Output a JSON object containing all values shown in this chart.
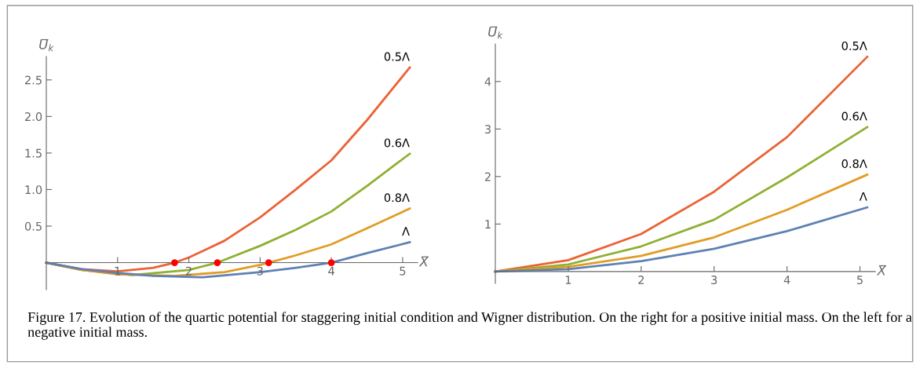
{
  "chart_data": [
    {
      "type": "line",
      "xlabel": "X̅",
      "ylabel": "U̅$_{k}$",
      "xlim": [
        0,
        5.21
      ],
      "ylim": [
        -0.37,
        2.82
      ],
      "xticks": [
        1,
        2,
        3,
        4,
        5
      ],
      "yticks": [
        0.5,
        {
          "value": 1,
          "label": "1.0"
        },
        1.5,
        {
          "value": 2,
          "label": "2.0"
        },
        2.5
      ],
      "legend": false,
      "grid": false,
      "annotations": [
        "Figure 17. Evolution of the quartic potential for staggering initial condition and Wigner distribution. On the right for a positive initial mass. On the left for a negative initial mass."
      ],
      "series": [
        {
          "name": "0.5Λ",
          "color": "#eb6235",
          "x": [
            0,
            0.5,
            1,
            1.5,
            1.8,
            2,
            2.5,
            3,
            3.5,
            4,
            4.5,
            5.1
          ],
          "values": [
            0,
            -0.09,
            -0.12,
            -0.07,
            0,
            0.07,
            0.3,
            0.62,
            1.0,
            1.4,
            1.95,
            2.67
          ]
        },
        {
          "name": "0.6Λ",
          "color": "#8fb032",
          "x": [
            0,
            0.5,
            1.2,
            2,
            2.4,
            3,
            3.5,
            4,
            4.5,
            5.1
          ],
          "values": [
            0,
            -0.1,
            -0.17,
            -0.1,
            0,
            0.23,
            0.45,
            0.7,
            1.05,
            1.49
          ]
        },
        {
          "name": "0.8Λ",
          "color": "#e19c24",
          "x": [
            0,
            0.5,
            1,
            1.8,
            2.5,
            3,
            3.12,
            3.5,
            4,
            4.5,
            5.1
          ],
          "values": [
            0,
            -0.1,
            -0.16,
            -0.18,
            -0.13,
            -0.03,
            0,
            0.1,
            0.25,
            0.47,
            0.74
          ]
        },
        {
          "name": "Λ",
          "color": "#5e81b5",
          "x": [
            0,
            0.5,
            1,
            1.5,
            2.2,
            3,
            3.5,
            4,
            4.5,
            5.1
          ],
          "values": [
            0,
            -0.09,
            -0.14,
            -0.18,
            -0.2,
            -0.13,
            -0.07,
            0,
            0.13,
            0.28
          ]
        },
        {
          "type": "scatter",
          "color": "#ff0000",
          "marker": "circle",
          "x": [
            1.8,
            2.4,
            3.12,
            4.0
          ],
          "values": [
            0,
            0,
            0,
            0
          ]
        }
      ]
    },
    {
      "type": "line",
      "xlabel": "X̅",
      "ylabel": "U̅$_{k}$",
      "xlim": [
        0,
        5.21
      ],
      "ylim": [
        -0.25,
        4.79
      ],
      "xticks": [
        1,
        2,
        3,
        4,
        5
      ],
      "yticks": [
        1,
        2,
        3,
        4
      ],
      "legend": false,
      "grid": false,
      "series": [
        {
          "name": "0.5Λ",
          "color": "#eb6235",
          "x": [
            0,
            1,
            2,
            3,
            4,
            5.1
          ],
          "values": [
            0,
            0.24,
            0.79,
            1.68,
            2.83,
            4.52
          ]
        },
        {
          "name": "0.6Λ",
          "color": "#8fb032",
          "x": [
            0,
            1,
            2,
            3,
            4,
            5.1
          ],
          "values": [
            0,
            0.15,
            0.53,
            1.09,
            1.98,
            3.04
          ]
        },
        {
          "name": "0.8Λ",
          "color": "#e19c24",
          "x": [
            0,
            1,
            2,
            3,
            4,
            5.1
          ],
          "values": [
            0,
            0.1,
            0.33,
            0.72,
            1.3,
            2.04
          ]
        },
        {
          "name": "Λ",
          "color": "#5e81b5",
          "x": [
            0,
            1,
            2,
            3,
            4,
            5.1
          ],
          "values": [
            0,
            0.05,
            0.22,
            0.48,
            0.85,
            1.35
          ]
        }
      ]
    }
  ]
}
